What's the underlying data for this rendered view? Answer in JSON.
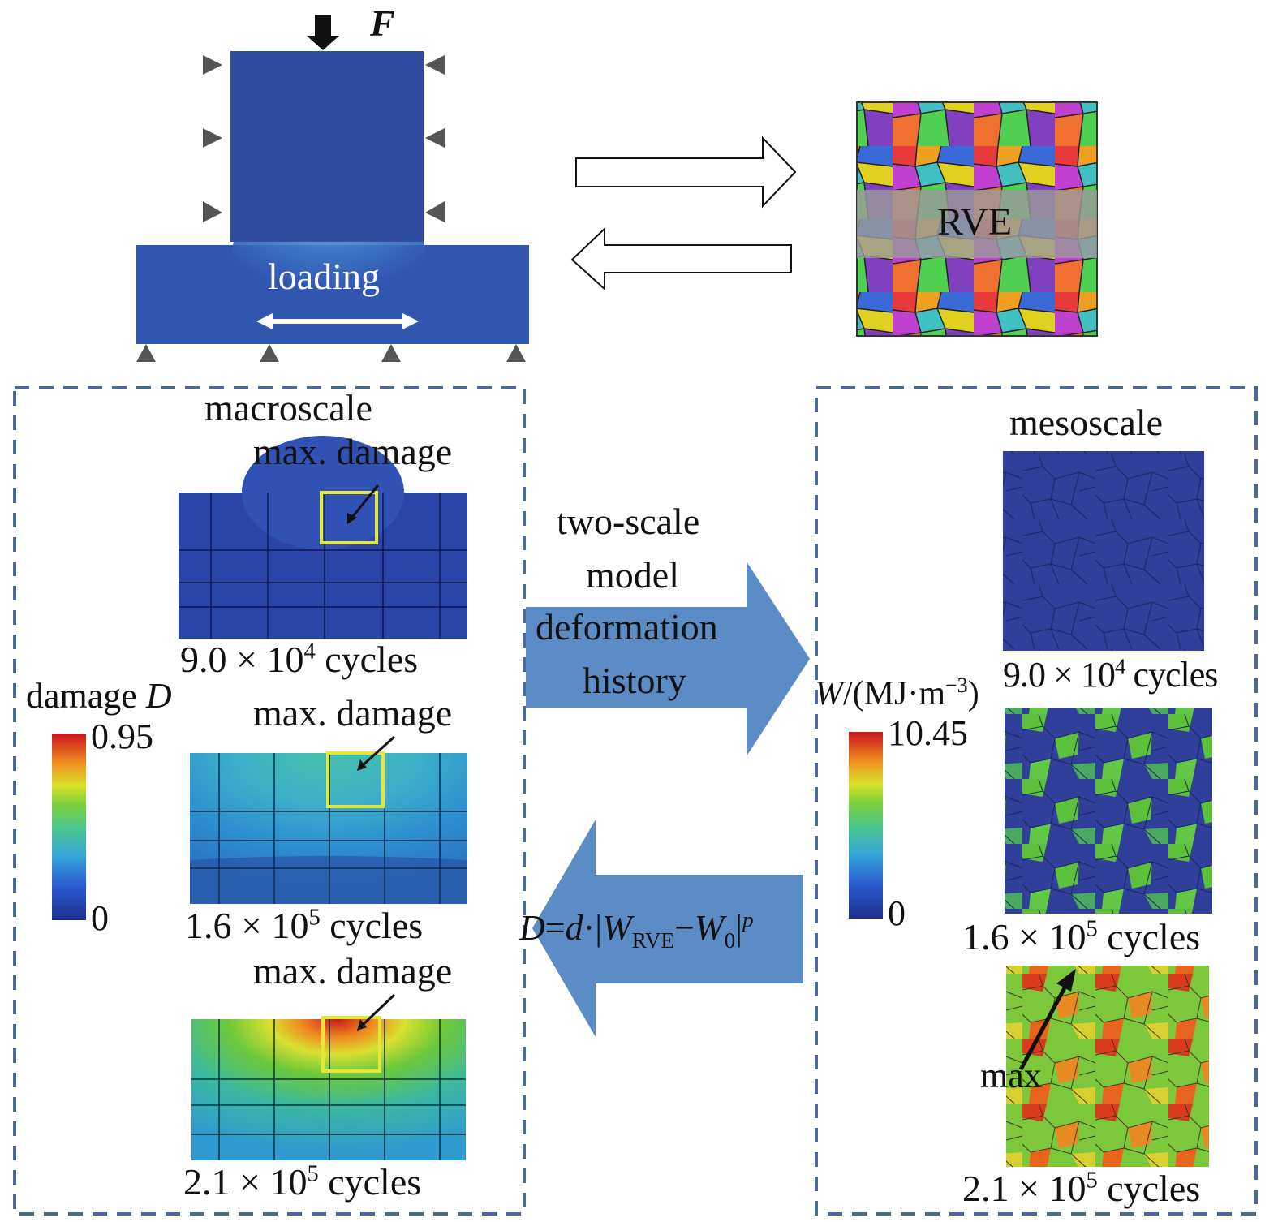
{
  "top": {
    "force_label": "F",
    "loading_label": "loading",
    "rve_label": "RVE"
  },
  "left_panel": {
    "title": "macroscale",
    "max_damage_label": "max. damage",
    "colorbar": {
      "title": "damage",
      "symbol": "D",
      "max": "0.95",
      "min": "0"
    },
    "snapshots": [
      {
        "mantissa": "9.0",
        "exponent": "4",
        "times": "×",
        "base": "10",
        "unit": "cycles"
      },
      {
        "mantissa": "1.6",
        "exponent": "5",
        "times": "×",
        "base": "10",
        "unit": "cycles"
      },
      {
        "mantissa": "2.1",
        "exponent": "5",
        "times": "×",
        "base": "10",
        "unit": "cycles"
      }
    ]
  },
  "middle": {
    "forward_lines": [
      "two-scale",
      "model",
      "deformation",
      "history"
    ],
    "equation": {
      "lhs": "D",
      "eq": "=",
      "d": "d",
      "dot": "·|",
      "w": "W",
      "sub_rve": "RVE",
      "minus": "−",
      "w0": "W",
      "sub_0": "0",
      "bar": "|",
      "p": "p"
    }
  },
  "right_panel": {
    "title": "mesoscale",
    "colorbar": {
      "symbol": "W",
      "unit_prefix": "/(MJ·m",
      "unit_exp": "−3",
      "unit_suffix": ")",
      "max": "10.45",
      "min": "0"
    },
    "max_label": "max",
    "snapshots": [
      {
        "mantissa": "9.0",
        "exponent": "4",
        "times": "×",
        "base": "10",
        "unit": "cycles"
      },
      {
        "mantissa": "1.6",
        "exponent": "5",
        "times": "×",
        "base": "10",
        "unit": "cycles"
      },
      {
        "mantissa": "2.1",
        "exponent": "5",
        "times": "×",
        "base": "10",
        "unit": "cycles"
      }
    ]
  },
  "colors": {
    "block": "#2f4ea0",
    "beam": "#3156b0",
    "arrow_blue": "#5b8cc6",
    "dash_border": "#4a6a94",
    "highlight_box": "#e6e63a",
    "jet_low": "#1e2e8f",
    "jet_high": "#c8161d"
  }
}
